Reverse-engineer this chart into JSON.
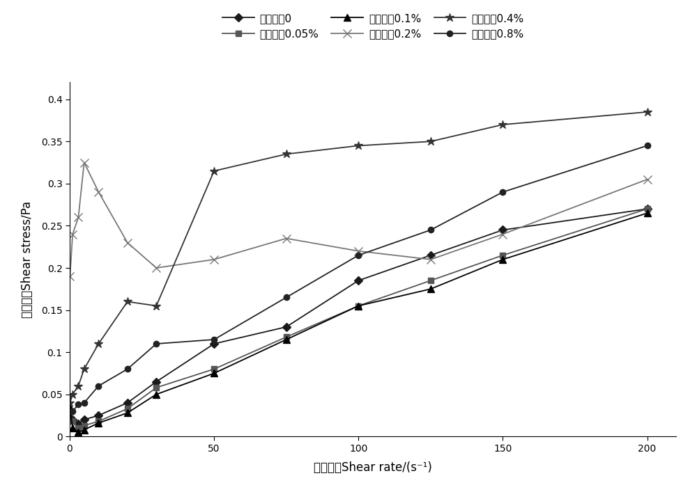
{
  "series": [
    {
      "label": "大豆皌苹0",
      "marker": "D",
      "color": "#1a1a1a",
      "linewidth": 1.3,
      "markersize": 6,
      "markerfacecolor": "#1a1a1a",
      "x": [
        0.1,
        1,
        3,
        5,
        10,
        20,
        30,
        50,
        75,
        100,
        125,
        150,
        200
      ],
      "y": [
        0.032,
        0.02,
        0.015,
        0.02,
        0.025,
        0.04,
        0.065,
        0.11,
        0.13,
        0.185,
        0.215,
        0.245,
        0.27
      ]
    },
    {
      "label": "大豆皌苹0.05%",
      "marker": "s",
      "color": "#555555",
      "linewidth": 1.3,
      "markersize": 6,
      "markerfacecolor": "#555555",
      "x": [
        0.1,
        1,
        3,
        5,
        10,
        20,
        30,
        50,
        75,
        100,
        125,
        150,
        200
      ],
      "y": [
        0.028,
        0.018,
        0.01,
        0.013,
        0.018,
        0.033,
        0.058,
        0.08,
        0.118,
        0.155,
        0.185,
        0.215,
        0.27
      ]
    },
    {
      "label": "大豆皌苹0.1%",
      "marker": "^",
      "color": "#000000",
      "linewidth": 1.3,
      "markersize": 7,
      "markerfacecolor": "#000000",
      "x": [
        0.1,
        1,
        3,
        5,
        10,
        20,
        30,
        50,
        75,
        100,
        125,
        150,
        200
      ],
      "y": [
        0.035,
        0.01,
        0.005,
        0.008,
        0.016,
        0.028,
        0.05,
        0.075,
        0.115,
        0.155,
        0.175,
        0.21,
        0.265
      ]
    },
    {
      "label": "大豆皌苹0.2%",
      "marker": "x",
      "color": "#777777",
      "linewidth": 1.3,
      "markersize": 8,
      "markerfacecolor": "none",
      "x": [
        0.1,
        1,
        3,
        5,
        10,
        20,
        30,
        50,
        75,
        100,
        125,
        150,
        200
      ],
      "y": [
        0.19,
        0.24,
        0.26,
        0.325,
        0.29,
        0.23,
        0.2,
        0.21,
        0.235,
        0.22,
        0.21,
        0.24,
        0.305
      ]
    },
    {
      "label": "大豆皌苹0.4%",
      "marker": "*",
      "color": "#333333",
      "linewidth": 1.3,
      "markersize": 9,
      "markerfacecolor": "#333333",
      "x": [
        0.1,
        1,
        3,
        5,
        10,
        20,
        30,
        50,
        75,
        100,
        125,
        150,
        200
      ],
      "y": [
        0.04,
        0.05,
        0.06,
        0.08,
        0.11,
        0.16,
        0.155,
        0.315,
        0.335,
        0.345,
        0.35,
        0.37,
        0.385
      ]
    },
    {
      "label": "大豆皌苹0.8%",
      "marker": "o",
      "color": "#222222",
      "linewidth": 1.3,
      "markersize": 6,
      "markerfacecolor": "#222222",
      "x": [
        0.1,
        1,
        3,
        5,
        10,
        20,
        30,
        50,
        75,
        100,
        125,
        150,
        200
      ],
      "y": [
        0.03,
        0.03,
        0.038,
        0.04,
        0.06,
        0.08,
        0.11,
        0.115,
        0.165,
        0.215,
        0.245,
        0.29,
        0.345
      ]
    }
  ],
  "xlabel": "剪切速率Shear rate/(s⁻¹)",
  "ylabel": "剪切应力Shear stress/Pa",
  "xlim": [
    0,
    210
  ],
  "ylim": [
    0,
    0.42
  ],
  "xticks": [
    0,
    50,
    100,
    150,
    200
  ],
  "yticks": [
    0,
    0.05,
    0.1,
    0.15,
    0.2,
    0.25,
    0.3,
    0.35,
    0.4
  ],
  "legend_ncol": 3,
  "figsize": [
    10.0,
    6.97
  ],
  "dpi": 100,
  "legend_fontsize": 11,
  "axis_fontsize": 12
}
